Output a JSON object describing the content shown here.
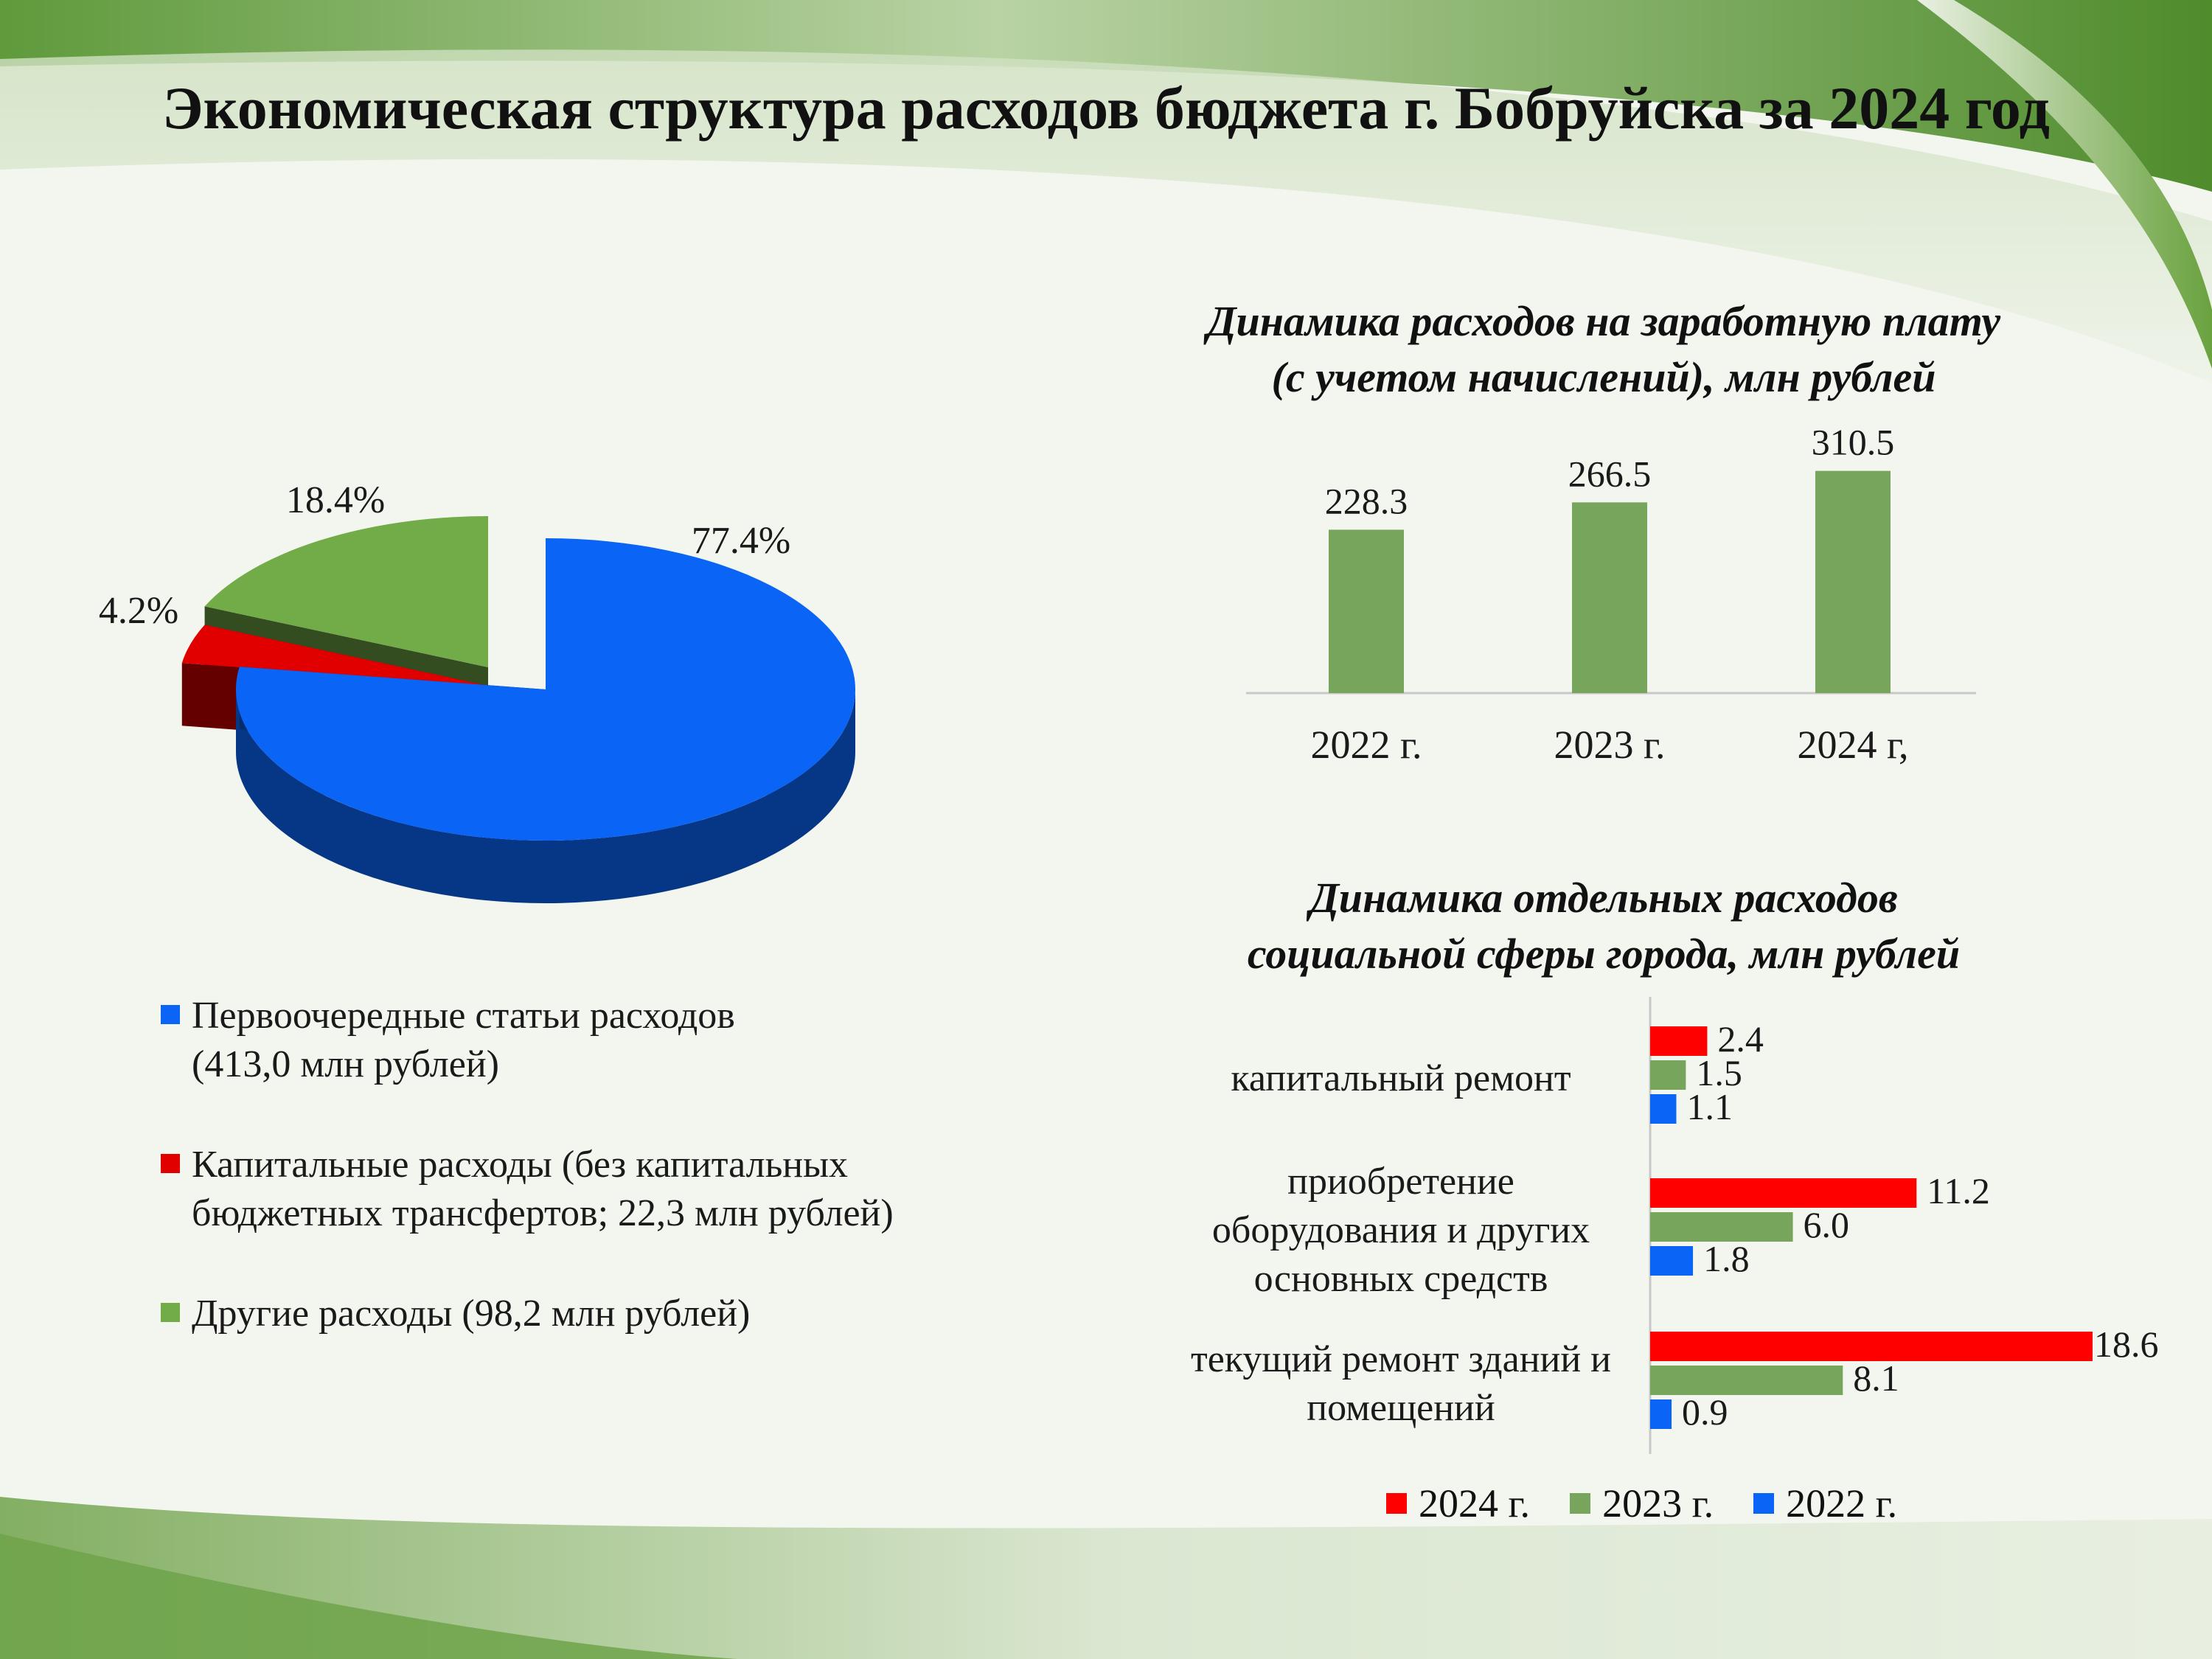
{
  "page": {
    "title": "Экономическая структура  расходов  бюджета г. Бобруйска за 2024 год"
  },
  "chart_data": [
    {
      "type": "pie",
      "title": "",
      "slices": [
        {
          "label": "Первоочередные статьи расходов",
          "value": 77.4,
          "value_label": "77.4%",
          "color": "#0a64f5"
        },
        {
          "label": "Капитальные расходы",
          "value": 4.2,
          "value_label": "4.2%",
          "color": "#e00000"
        },
        {
          "label": "Другие расходы",
          "value": 18.4,
          "value_label": "18.4%",
          "color": "#72ac48"
        }
      ],
      "legend": {
        "placement": "bottom",
        "items": [
          {
            "lines": [
              "Первоочередные статьи расходов",
              "(413,0 млн рублей)"
            ],
            "color": "#0a64f5"
          },
          {
            "lines": [
              "Капитальные расходы (без капитальных",
              "бюджетных трансфертов;  22,3 млн рублей)"
            ],
            "color": "#e00000"
          },
          {
            "lines": [
              "Другие расходы  (98,2 млн рублей)"
            ],
            "color": "#72ac48"
          }
        ]
      }
    },
    {
      "type": "bar",
      "title_lines": [
        "Динамика расходов на заработную плату",
        "(с учетом начислений), млн рублей"
      ],
      "categories": [
        "2022 г.",
        "2023 г.",
        "2024 г,"
      ],
      "values": [
        228.3,
        266.5,
        310.5
      ],
      "value_labels": [
        "228.3",
        "266.5",
        "310.5"
      ],
      "color": "#77a55b",
      "ylim": [
        0,
        340
      ],
      "grid": false
    },
    {
      "type": "bar",
      "orientation": "horizontal",
      "title_lines": [
        "Динамика отдельных расходов",
        "социальной сферы города, млн рублей"
      ],
      "categories": [
        {
          "lines": [
            "капитальный ремонт"
          ]
        },
        {
          "lines": [
            "приобретение",
            "оборудования и других",
            "основных средств"
          ]
        },
        {
          "lines": [
            "текущий ремонт зданий и",
            "помещений"
          ]
        }
      ],
      "series": [
        {
          "name": "2024 г.",
          "color": "#ff0000",
          "values": [
            2.4,
            11.2,
            18.6
          ],
          "labels": [
            "2.4",
            "11.2",
            "18.6"
          ]
        },
        {
          "name": "2023 г.",
          "color": "#77a55b",
          "values": [
            1.5,
            6.0,
            8.1
          ],
          "labels": [
            "1.5",
            "6.0",
            "8.1"
          ]
        },
        {
          "name": "2022 г.",
          "color": "#0a64f5",
          "values": [
            1.1,
            1.8,
            0.9
          ],
          "labels": [
            "1.1",
            "1.8",
            "0.9"
          ]
        }
      ],
      "xlim": [
        0,
        18.6
      ],
      "legend_placement": "bottom",
      "grid": false
    }
  ]
}
